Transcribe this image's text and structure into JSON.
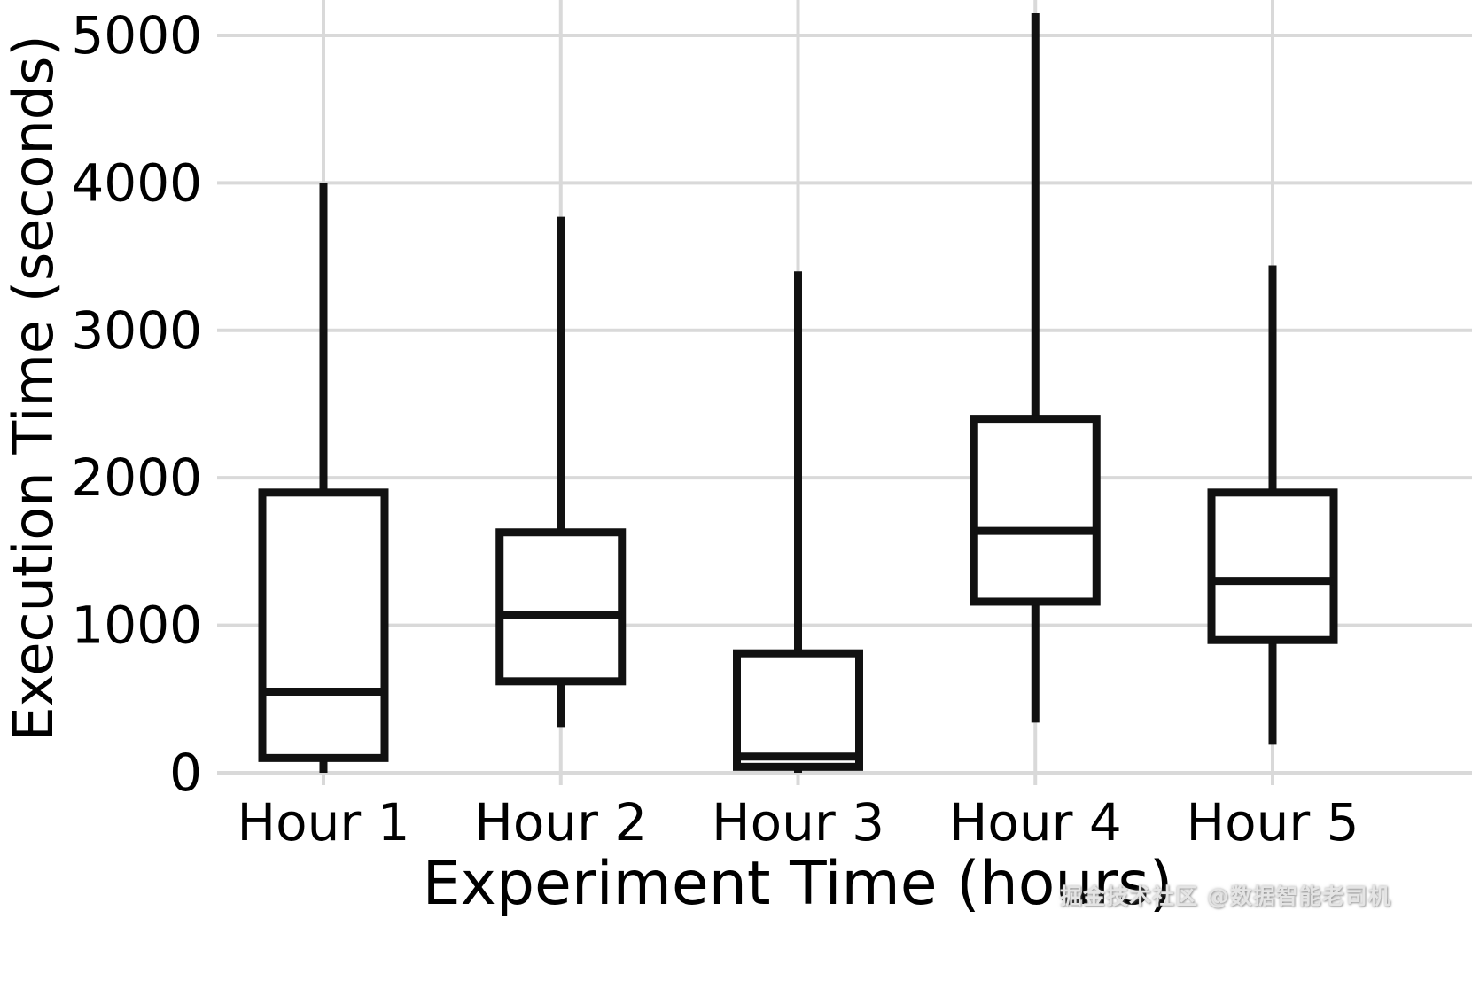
{
  "chart_data": {
    "type": "box",
    "title": "",
    "xlabel": "Experiment Time (hours)",
    "ylabel": "Execution Time (seconds)",
    "categories": [
      "Hour 1",
      "Hour 2",
      "Hour 3",
      "Hour 4",
      "Hour 5"
    ],
    "yticks": [
      0,
      1000,
      2000,
      3000,
      4000,
      5000
    ],
    "ylim": [
      0,
      5240
    ],
    "grid": true,
    "legend": false,
    "series": [
      {
        "name": "Hour 1",
        "min": 0,
        "q1": 100,
        "median": 550,
        "q3": 1900,
        "max": 4000
      },
      {
        "name": "Hour 2",
        "min": 310,
        "q1": 620,
        "median": 1070,
        "q3": 1630,
        "max": 3770
      },
      {
        "name": "Hour 3",
        "min": 0,
        "q1": 40,
        "median": 110,
        "q3": 810,
        "max": 3400
      },
      {
        "name": "Hour 4",
        "min": 340,
        "q1": 1160,
        "median": 1640,
        "q3": 2400,
        "max": 5150
      },
      {
        "name": "Hour 5",
        "min": 190,
        "q1": 900,
        "median": 1300,
        "q3": 1900,
        "max": 3440
      }
    ]
  },
  "colors": {
    "box_stroke": "#111111",
    "box_fill": "#ffffff",
    "grid": "#d9d9d9",
    "text": "#000000",
    "background": "#ffffff"
  },
  "watermark": "掘金技术社区 @数据智能老司机"
}
